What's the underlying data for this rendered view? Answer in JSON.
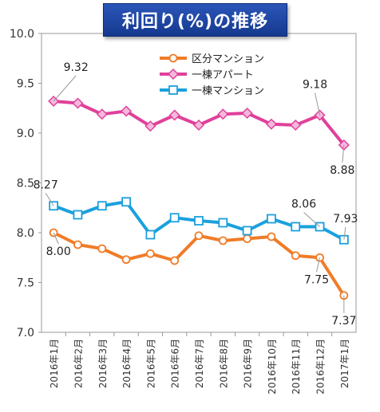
{
  "chart_data": {
    "type": "line",
    "title": "利回り(%)の推移",
    "categories": [
      "2016年1月",
      "2016年2月",
      "2016年3月",
      "2016年4月",
      "2016年5月",
      "2016年6月",
      "2016年7月",
      "2016年8月",
      "2016年9月",
      "2016年10月",
      "2016年11月",
      "2016年12月",
      "2017年1月"
    ],
    "ylim": [
      7.0,
      10.0
    ],
    "yticks": [
      "7.0",
      "7.5",
      "8.0",
      "8.5",
      "9.0",
      "9.5",
      "10.0"
    ],
    "grid": false,
    "legend_position": "top-center",
    "series": [
      {
        "name": "区分マンション",
        "color": "#f07c28",
        "marker": "circle",
        "values": [
          8.0,
          7.88,
          7.84,
          7.73,
          7.79,
          7.72,
          7.97,
          7.92,
          7.94,
          7.96,
          7.77,
          7.75,
          7.37
        ]
      },
      {
        "name": "一棟アパート",
        "color": "#e0409a",
        "marker": "diamond",
        "values": [
          9.32,
          9.3,
          9.19,
          9.22,
          9.07,
          9.18,
          9.08,
          9.19,
          9.2,
          9.09,
          9.08,
          9.18,
          8.88
        ]
      },
      {
        "name": "一棟マンション",
        "color": "#1aa0de",
        "marker": "square",
        "values": [
          8.27,
          8.18,
          8.27,
          8.31,
          7.98,
          8.15,
          8.12,
          8.1,
          8.02,
          8.14,
          8.06,
          8.06,
          7.93
        ]
      }
    ],
    "annotations": [
      {
        "series": 1,
        "index": 0,
        "label": "9.32"
      },
      {
        "series": 1,
        "index": 11,
        "label": "9.18"
      },
      {
        "series": 1,
        "index": 12,
        "label": "8.88"
      },
      {
        "series": 2,
        "index": 0,
        "label": "8.27"
      },
      {
        "series": 2,
        "index": 11,
        "label": "8.06"
      },
      {
        "series": 2,
        "index": 12,
        "label": "7.93"
      },
      {
        "series": 0,
        "index": 0,
        "label": "8.00"
      },
      {
        "series": 0,
        "index": 11,
        "label": "7.75"
      },
      {
        "series": 0,
        "index": 12,
        "label": "7.37"
      }
    ]
  }
}
